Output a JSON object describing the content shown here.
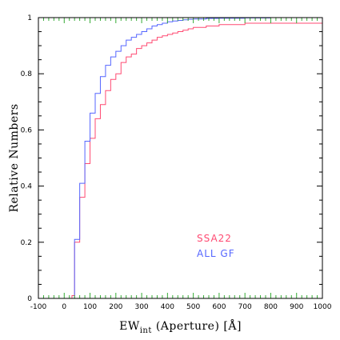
{
  "chart_data": {
    "type": "line",
    "step": true,
    "xlabel_main": "EW",
    "xlabel_sub": "int",
    "xlabel_rest": " (Aperture) [Å]",
    "ylabel": "Relative Numbers",
    "xlim": [
      -100,
      1000
    ],
    "ylim": [
      0,
      1
    ],
    "x_ticks": [
      -100,
      0,
      100,
      200,
      300,
      400,
      500,
      600,
      700,
      800,
      900,
      1000
    ],
    "x_tick_labels": [
      "-100",
      "0",
      "100",
      "200",
      "300",
      "400",
      "500",
      "600",
      "700",
      "800",
      "900",
      "1000"
    ],
    "y_ticks": [
      0,
      0.2,
      0.4,
      0.6,
      0.8,
      1
    ],
    "y_tick_labels": [
      "0",
      "0.2",
      "0.4",
      "0.6",
      "0.8",
      "1"
    ],
    "grid": false,
    "legend_position": "lower-right",
    "series": [
      {
        "name": "SSA22",
        "color": "#ff4a72",
        "x": [
          -100,
          30,
          40,
          60,
          80,
          100,
          120,
          140,
          160,
          180,
          200,
          220,
          240,
          260,
          280,
          300,
          320,
          340,
          360,
          380,
          400,
          420,
          440,
          460,
          480,
          500,
          550,
          600,
          700,
          1000
        ],
        "y": [
          0,
          0.01,
          0.2,
          0.36,
          0.48,
          0.57,
          0.64,
          0.69,
          0.74,
          0.78,
          0.8,
          0.84,
          0.86,
          0.87,
          0.89,
          0.9,
          0.91,
          0.92,
          0.93,
          0.935,
          0.94,
          0.945,
          0.95,
          0.955,
          0.96,
          0.965,
          0.97,
          0.975,
          0.98,
          0.98
        ]
      },
      {
        "name": "ALL GF",
        "color": "#5566ff",
        "x": [
          -100,
          40,
          60,
          80,
          100,
          120,
          140,
          160,
          180,
          200,
          220,
          240,
          260,
          280,
          300,
          320,
          340,
          360,
          380,
          400,
          420,
          440,
          460,
          480,
          500,
          550,
          600,
          700,
          800,
          1000
        ],
        "y": [
          0,
          0.21,
          0.41,
          0.56,
          0.66,
          0.73,
          0.79,
          0.83,
          0.86,
          0.88,
          0.9,
          0.92,
          0.93,
          0.94,
          0.95,
          0.96,
          0.97,
          0.975,
          0.98,
          0.985,
          0.988,
          0.99,
          0.992,
          0.994,
          0.995,
          0.997,
          0.998,
          0.999,
          1.0,
          1.0
        ]
      }
    ]
  }
}
